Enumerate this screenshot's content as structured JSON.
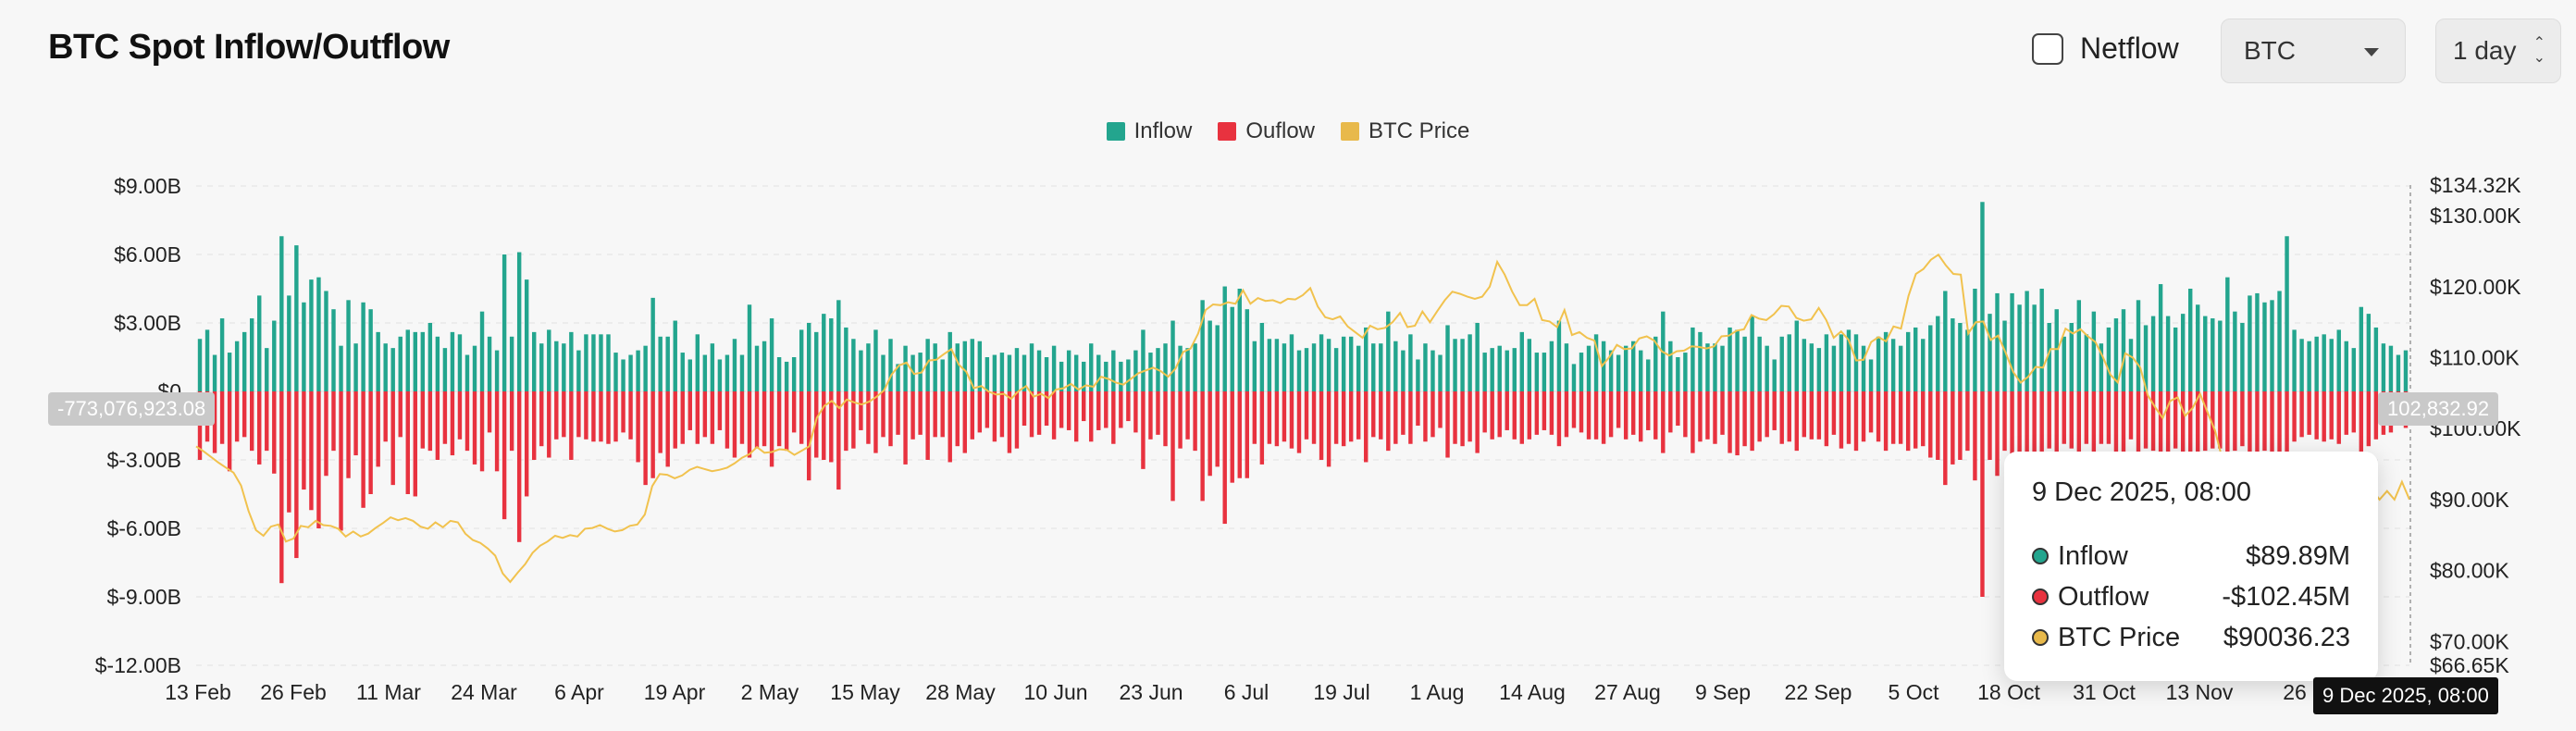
{
  "title": "BTC Spot Inflow/Outflow",
  "controls": {
    "netflow_label": "Netflow",
    "asset": "BTC",
    "period": "1 day"
  },
  "legend": [
    {
      "label": "Inflow",
      "color": "#23a58e"
    },
    {
      "label": "Ouflow",
      "color": "#e8323f"
    },
    {
      "label": "BTC Price",
      "color": "#e8b94b"
    }
  ],
  "crosshair": {
    "left_value": "-773,076,923.08",
    "right_value": "102,832.92",
    "date": "9 Dec 2025, 08:00"
  },
  "tooltip": {
    "title": "9 Dec 2025, 08:00",
    "rows": [
      {
        "name": "Inflow",
        "value": "$89.89M",
        "color": "#23a58e"
      },
      {
        "name": "Outflow",
        "value": "-$102.45M",
        "color": "#e8323f"
      },
      {
        "name": "BTC Price",
        "value": "$90036.23",
        "color": "#e8b94b"
      }
    ]
  },
  "chart_data": {
    "type": "bar",
    "left_axis": {
      "ticks": [
        "$9.00B",
        "$6.00B",
        "$3.00B",
        "$0",
        "$-3.00B",
        "$-6.00B",
        "$-9.00B",
        "$-12.00B"
      ],
      "range_billions": [
        -12,
        9
      ]
    },
    "right_axis": {
      "ticks": [
        "$134.32K",
        "$130.00K",
        "$120.00K",
        "$110.00K",
        "$100.00K",
        "$90.00K",
        "$80.00K",
        "$70.00K",
        "$66.65K"
      ],
      "range_thousands": [
        66.65,
        134.32
      ]
    },
    "x_ticks": [
      "13 Feb",
      "26 Feb",
      "11 Mar",
      "24 Mar",
      "6 Apr",
      "19 Apr",
      "2 May",
      "15 May",
      "28 May",
      "10 Jun",
      "23 Jun",
      "6 Jul",
      "19 Jul",
      "1 Aug",
      "14 Aug",
      "27 Aug",
      "9 Sep",
      "22 Sep",
      "5 Oct",
      "18 Oct",
      "31 Oct",
      "13 Nov",
      "26"
    ],
    "inflow_billions": [
      2.3,
      2.7,
      1.6,
      3.2,
      1.7,
      2.2,
      2.6,
      3.2,
      4.2,
      1.9,
      3.1,
      6.8,
      4.2,
      6.4,
      3.9,
      4.9,
      5.0,
      4.4,
      3.6,
      2.0,
      4.0,
      2.1,
      3.9,
      3.6,
      2.6,
      2.1,
      1.9,
      2.4,
      2.7,
      2.6,
      2.6,
      3.0,
      2.4,
      1.9,
      2.6,
      2.5,
      1.6,
      2.0,
      3.5,
      2.4,
      1.8,
      6.0,
      2.4,
      6.1,
      4.9,
      2.6,
      2.1,
      2.7,
      2.2,
      2.1,
      2.6,
      1.8,
      2.5,
      2.5,
      2.5,
      2.5,
      1.7,
      1.4,
      1.6,
      1.8,
      2.0,
      4.1,
      2.4,
      2.4,
      3.1,
      1.7,
      1.4,
      2.5,
      1.6,
      2.1,
      1.4,
      1.6,
      2.3,
      1.6,
      3.8,
      2.0,
      2.2,
      3.2,
      1.5,
      1.3,
      1.5,
      2.7,
      3.0,
      2.6,
      3.4,
      3.2,
      4.0,
      2.8,
      2.3,
      1.8,
      2.1,
      2.7,
      1.6,
      2.3,
      1.2,
      2.0,
      1.6,
      1.7,
      2.3,
      2.1,
      1.4,
      2.6,
      2.1,
      2.2,
      2.3,
      2.2,
      1.5,
      1.6,
      1.7,
      1.6,
      1.9,
      1.6,
      2.1,
      1.8,
      1.5,
      2.0,
      1.3,
      1.8,
      1.6,
      1.3,
      2.1,
      1.6,
      1.3,
      1.8,
      1.3,
      1.4,
      1.8,
      2.7,
      1.7,
      1.9,
      2.1,
      3.1,
      2.0,
      1.9,
      2.1,
      4.0,
      3.1,
      2.9,
      4.6,
      3.7,
      4.5,
      3.6,
      2.2,
      3.0,
      2.3,
      2.3,
      2.1,
      2.5,
      1.8,
      1.9,
      2.1,
      2.5,
      2.3,
      1.9,
      2.4,
      2.4,
      2.0,
      2.8,
      2.1,
      2.1,
      3.5,
      2.2,
      1.8,
      2.5,
      1.4,
      2.1,
      1.8,
      1.6,
      2.9,
      2.3,
      2.3,
      2.5,
      3.0,
      1.7,
      1.9,
      2.0,
      1.8,
      1.9,
      2.6,
      2.3,
      1.7,
      1.7,
      2.2,
      3.1,
      2.1,
      1.2,
      1.7,
      2.0,
      2.5,
      2.2,
      1.8,
      1.6,
      2.0,
      2.2,
      1.8,
      1.4,
      2.4,
      3.5,
      2.2,
      1.5,
      1.7,
      2.8,
      2.6,
      2.1,
      2.1,
      2.0,
      2.8,
      2.7,
      2.4,
      3.3,
      2.4,
      2.0,
      1.4,
      2.4,
      2.5,
      3.1,
      2.3,
      2.1,
      1.9,
      2.5,
      2.0,
      2.5,
      2.7,
      2.5,
      2.0,
      1.4,
      2.4,
      2.6,
      2.3,
      2.0,
      2.6,
      2.8,
      2.3,
      2.9,
      3.3,
      4.4,
      3.2,
      3.0,
      2.7,
      4.5,
      8.3,
      3.4,
      4.3,
      3.1,
      4.3,
      3.8,
      4.4,
      3.8,
      4.5,
      3.0,
      3.6,
      2.4,
      3.0,
      4.0,
      2.5,
      3.5,
      2.1,
      2.8,
      3.2,
      3.6,
      2.3,
      4.0,
      2.9,
      3.3,
      4.7,
      3.3,
      2.8,
      3.4,
      4.5,
      3.8,
      3.3,
      3.2,
      3.1,
      5.0,
      3.5,
      3.0,
      4.2,
      4.3,
      3.9,
      4.0,
      4.4,
      6.8,
      2.7,
      2.3,
      2.2,
      2.4,
      2.5,
      2.3,
      2.7,
      2.2,
      1.9,
      3.7,
      3.4,
      2.8,
      2.1,
      2.0,
      1.6,
      1.8
    ],
    "outflow_billions": [
      -3.0,
      -2.2,
      -2.7,
      -2.3,
      -3.5,
      -2.2,
      -2.0,
      -2.6,
      -3.2,
      -2.6,
      -3.6,
      -8.4,
      -5.3,
      -7.3,
      -4.3,
      -5.2,
      -6.0,
      -3.7,
      -2.6,
      -6.1,
      -3.8,
      -2.8,
      -5.1,
      -4.5,
      -3.3,
      -2.2,
      -4.1,
      -2.0,
      -4.5,
      -4.6,
      -2.5,
      -2.6,
      -3.0,
      -2.3,
      -2.8,
      -2.1,
      -2.6,
      -3.2,
      -3.5,
      -1.8,
      -3.5,
      -5.6,
      -2.6,
      -6.6,
      -4.6,
      -3.0,
      -2.4,
      -2.9,
      -2.1,
      -2.0,
      -3.0,
      -2.0,
      -2.1,
      -2.2,
      -2.2,
      -2.3,
      -2.2,
      -1.8,
      -2.1,
      -3.1,
      -4.1,
      -3.8,
      -2.7,
      -3.3,
      -2.5,
      -2.3,
      -1.7,
      -2.3,
      -2.0,
      -2.3,
      -1.7,
      -2.5,
      -2.9,
      -2.3,
      -2.9,
      -2.5,
      -2.4,
      -3.3,
      -2.4,
      -2.6,
      -1.8,
      -2.3,
      -3.9,
      -2.9,
      -3.0,
      -3.1,
      -4.3,
      -2.6,
      -2.5,
      -1.7,
      -2.3,
      -2.7,
      -2.0,
      -2.4,
      -1.9,
      -3.2,
      -2.1,
      -1.9,
      -3.0,
      -2.0,
      -2.0,
      -3.1,
      -2.4,
      -2.7,
      -2.1,
      -1.8,
      -1.6,
      -2.2,
      -2.0,
      -2.7,
      -2.5,
      -1.5,
      -2.0,
      -1.9,
      -1.5,
      -2.1,
      -1.6,
      -1.7,
      -2.2,
      -1.3,
      -2.2,
      -1.7,
      -1.6,
      -2.3,
      -1.6,
      -1.3,
      -1.8,
      -3.4,
      -2.1,
      -1.9,
      -2.4,
      -4.8,
      -2.5,
      -2.1,
      -2.6,
      -4.8,
      -3.7,
      -3.3,
      -5.8,
      -4.0,
      -3.8,
      -3.8,
      -2.3,
      -3.2,
      -2.3,
      -2.4,
      -2.2,
      -2.5,
      -2.7,
      -2.1,
      -2.3,
      -3.0,
      -3.3,
      -2.3,
      -2.4,
      -2.2,
      -2.1,
      -3.1,
      -2.0,
      -2.1,
      -2.6,
      -2.3,
      -1.9,
      -2.3,
      -1.5,
      -2.2,
      -2.0,
      -1.6,
      -2.9,
      -2.3,
      -2.4,
      -2.2,
      -2.7,
      -1.8,
      -2.1,
      -2.0,
      -1.7,
      -2.1,
      -2.3,
      -2.1,
      -1.9,
      -1.7,
      -1.9,
      -2.4,
      -2.0,
      -1.6,
      -1.8,
      -2.1,
      -2.1,
      -2.3,
      -2.0,
      -1.6,
      -2.1,
      -1.9,
      -2.2,
      -1.7,
      -2.1,
      -2.7,
      -1.8,
      -1.5,
      -2.0,
      -2.7,
      -2.2,
      -2.1,
      -2.3,
      -1.9,
      -2.7,
      -2.8,
      -2.4,
      -2.6,
      -2.2,
      -2.0,
      -1.7,
      -2.3,
      -2.2,
      -2.6,
      -2.0,
      -2.1,
      -2.1,
      -2.4,
      -1.9,
      -2.5,
      -2.3,
      -2.6,
      -2.2,
      -1.8,
      -2.2,
      -2.6,
      -2.3,
      -2.3,
      -2.6,
      -2.5,
      -2.4,
      -2.9,
      -3.0,
      -4.1,
      -3.2,
      -3.0,
      -2.6,
      -3.9,
      -9.0,
      -3.0,
      -3.7,
      -2.6,
      -3.6,
      -3.1,
      -3.3,
      -3.0,
      -3.3,
      -2.5,
      -2.7,
      -2.3,
      -2.5,
      -3.0,
      -2.3,
      -2.9,
      -2.3,
      -2.3,
      -2.8,
      -3.0,
      -2.1,
      -3.0,
      -2.5,
      -2.6,
      -3.4,
      -2.7,
      -2.5,
      -2.7,
      -3.2,
      -2.8,
      -2.6,
      -2.5,
      -2.5,
      -3.5,
      -2.6,
      -2.4,
      -2.9,
      -3.1,
      -2.6,
      -2.8,
      -3.1,
      -4.3,
      -2.2,
      -2.0,
      -1.9,
      -2.1,
      -2.2,
      -2.1,
      -2.3,
      -1.9,
      -1.8,
      -2.7,
      -2.4,
      -2.1,
      -1.9,
      -1.8,
      -1.5,
      -1.6
    ],
    "btc_price_thousands": [
      97.5,
      96.8,
      96.0,
      95.2,
      94.5,
      93.8,
      92.0,
      88.4,
      85.7,
      84.9,
      86.2,
      86.5,
      84.1,
      84.5,
      86.3,
      86.1,
      87.0,
      86.4,
      86.3,
      85.9,
      84.8,
      85.5,
      84.8,
      85.2,
      86.0,
      86.7,
      87.5,
      87.1,
      87.4,
      87.0,
      86.2,
      85.9,
      86.8,
      86.1,
      87.0,
      86.8,
      85.2,
      84.3,
      83.9,
      83.1,
      82.1,
      79.6,
      78.4,
      79.7,
      80.9,
      82.5,
      83.5,
      84.1,
      84.9,
      84.6,
      85.0,
      84.8,
      85.9,
      86.0,
      86.4,
      85.9,
      85.5,
      85.7,
      86.3,
      86.5,
      87.9,
      91.9,
      93.6,
      93.5,
      93.0,
      93.4,
      94.2,
      94.6,
      94.3,
      94.0,
      94.2,
      94.5,
      95.1,
      95.9,
      96.4,
      97.4,
      96.6,
      96.7,
      97.1,
      97.0,
      96.3,
      96.9,
      97.5,
      101.5,
      103.2,
      103.9,
      102.9,
      104.1,
      103.7,
      103.4,
      103.8,
      104.5,
      105.4,
      107.6,
      108.9,
      109.3,
      107.7,
      107.9,
      109.6,
      109.7,
      110.5,
      111.2,
      109.0,
      108.0,
      105.7,
      106.0,
      105.2,
      104.8,
      104.9,
      104.2,
      105.3,
      106.0,
      104.5,
      104.9,
      104.3,
      105.5,
      105.7,
      106.3,
      105.5,
      106.1,
      105.9,
      107.3,
      107.0,
      106.5,
      106.2,
      107.0,
      107.8,
      108.2,
      108.6,
      108.1,
      107.3,
      108.5,
      110.8,
      111.3,
      113.4,
      116.7,
      117.5,
      117.4,
      117.8,
      117.6,
      119.5,
      117.6,
      118.4,
      118.0,
      118.1,
      117.7,
      118.3,
      118.2,
      118.8,
      119.8,
      117.2,
      115.7,
      115.4,
      115.8,
      114.4,
      113.6,
      112.8,
      114.5,
      114.0,
      114.2,
      115.0,
      116.3,
      114.3,
      114.5,
      116.5,
      115.0,
      116.6,
      118.1,
      119.3,
      119.0,
      118.6,
      118.3,
      118.6,
      120.0,
      123.5,
      121.7,
      119.3,
      117.4,
      117.4,
      118.3,
      115.3,
      115.1,
      114.3,
      116.7,
      113.2,
      113.6,
      112.8,
      112.4,
      108.8,
      110.1,
      111.8,
      111.2,
      111.3,
      112.7,
      113.0,
      112.4,
      110.9,
      110.3,
      110.9,
      111.0,
      111.6,
      111.5,
      111.3,
      111.6,
      113.0,
      113.1,
      113.8,
      114.0,
      116.0,
      115.5,
      115.3,
      116.1,
      117.3,
      117.2,
      115.6,
      115.2,
      115.4,
      117.0,
      115.3,
      112.8,
      113.7,
      112.5,
      109.6,
      109.7,
      112.2,
      112.9,
      112.3,
      114.4,
      114.1,
      118.7,
      121.8,
      122.5,
      123.8,
      124.5,
      123.0,
      121.8,
      121.7,
      113.4,
      115.0,
      115.1,
      112.5,
      113.1,
      110.7,
      108.0,
      106.5,
      107.3,
      108.7,
      108.6,
      111.2,
      111.2,
      114.1,
      113.4,
      114.0,
      113.0,
      112.2,
      110.1,
      107.6,
      106.5,
      110.6,
      110.0,
      108.6,
      104.7,
      103.0,
      101.5,
      103.9,
      104.4,
      101.8,
      102.9,
      104.9,
      102.3,
      99.7,
      95.6,
      94.2,
      92.5,
      91.6,
      92.8,
      91.5,
      86.7,
      84.5,
      86.1,
      87.8,
      87.4,
      90.7,
      91.3,
      91.2,
      92.4,
      89.5,
      93.1,
      92.0,
      91.5,
      90.4,
      91.4,
      90.0,
      91.2,
      90.0,
      92.5,
      90.0
    ]
  }
}
